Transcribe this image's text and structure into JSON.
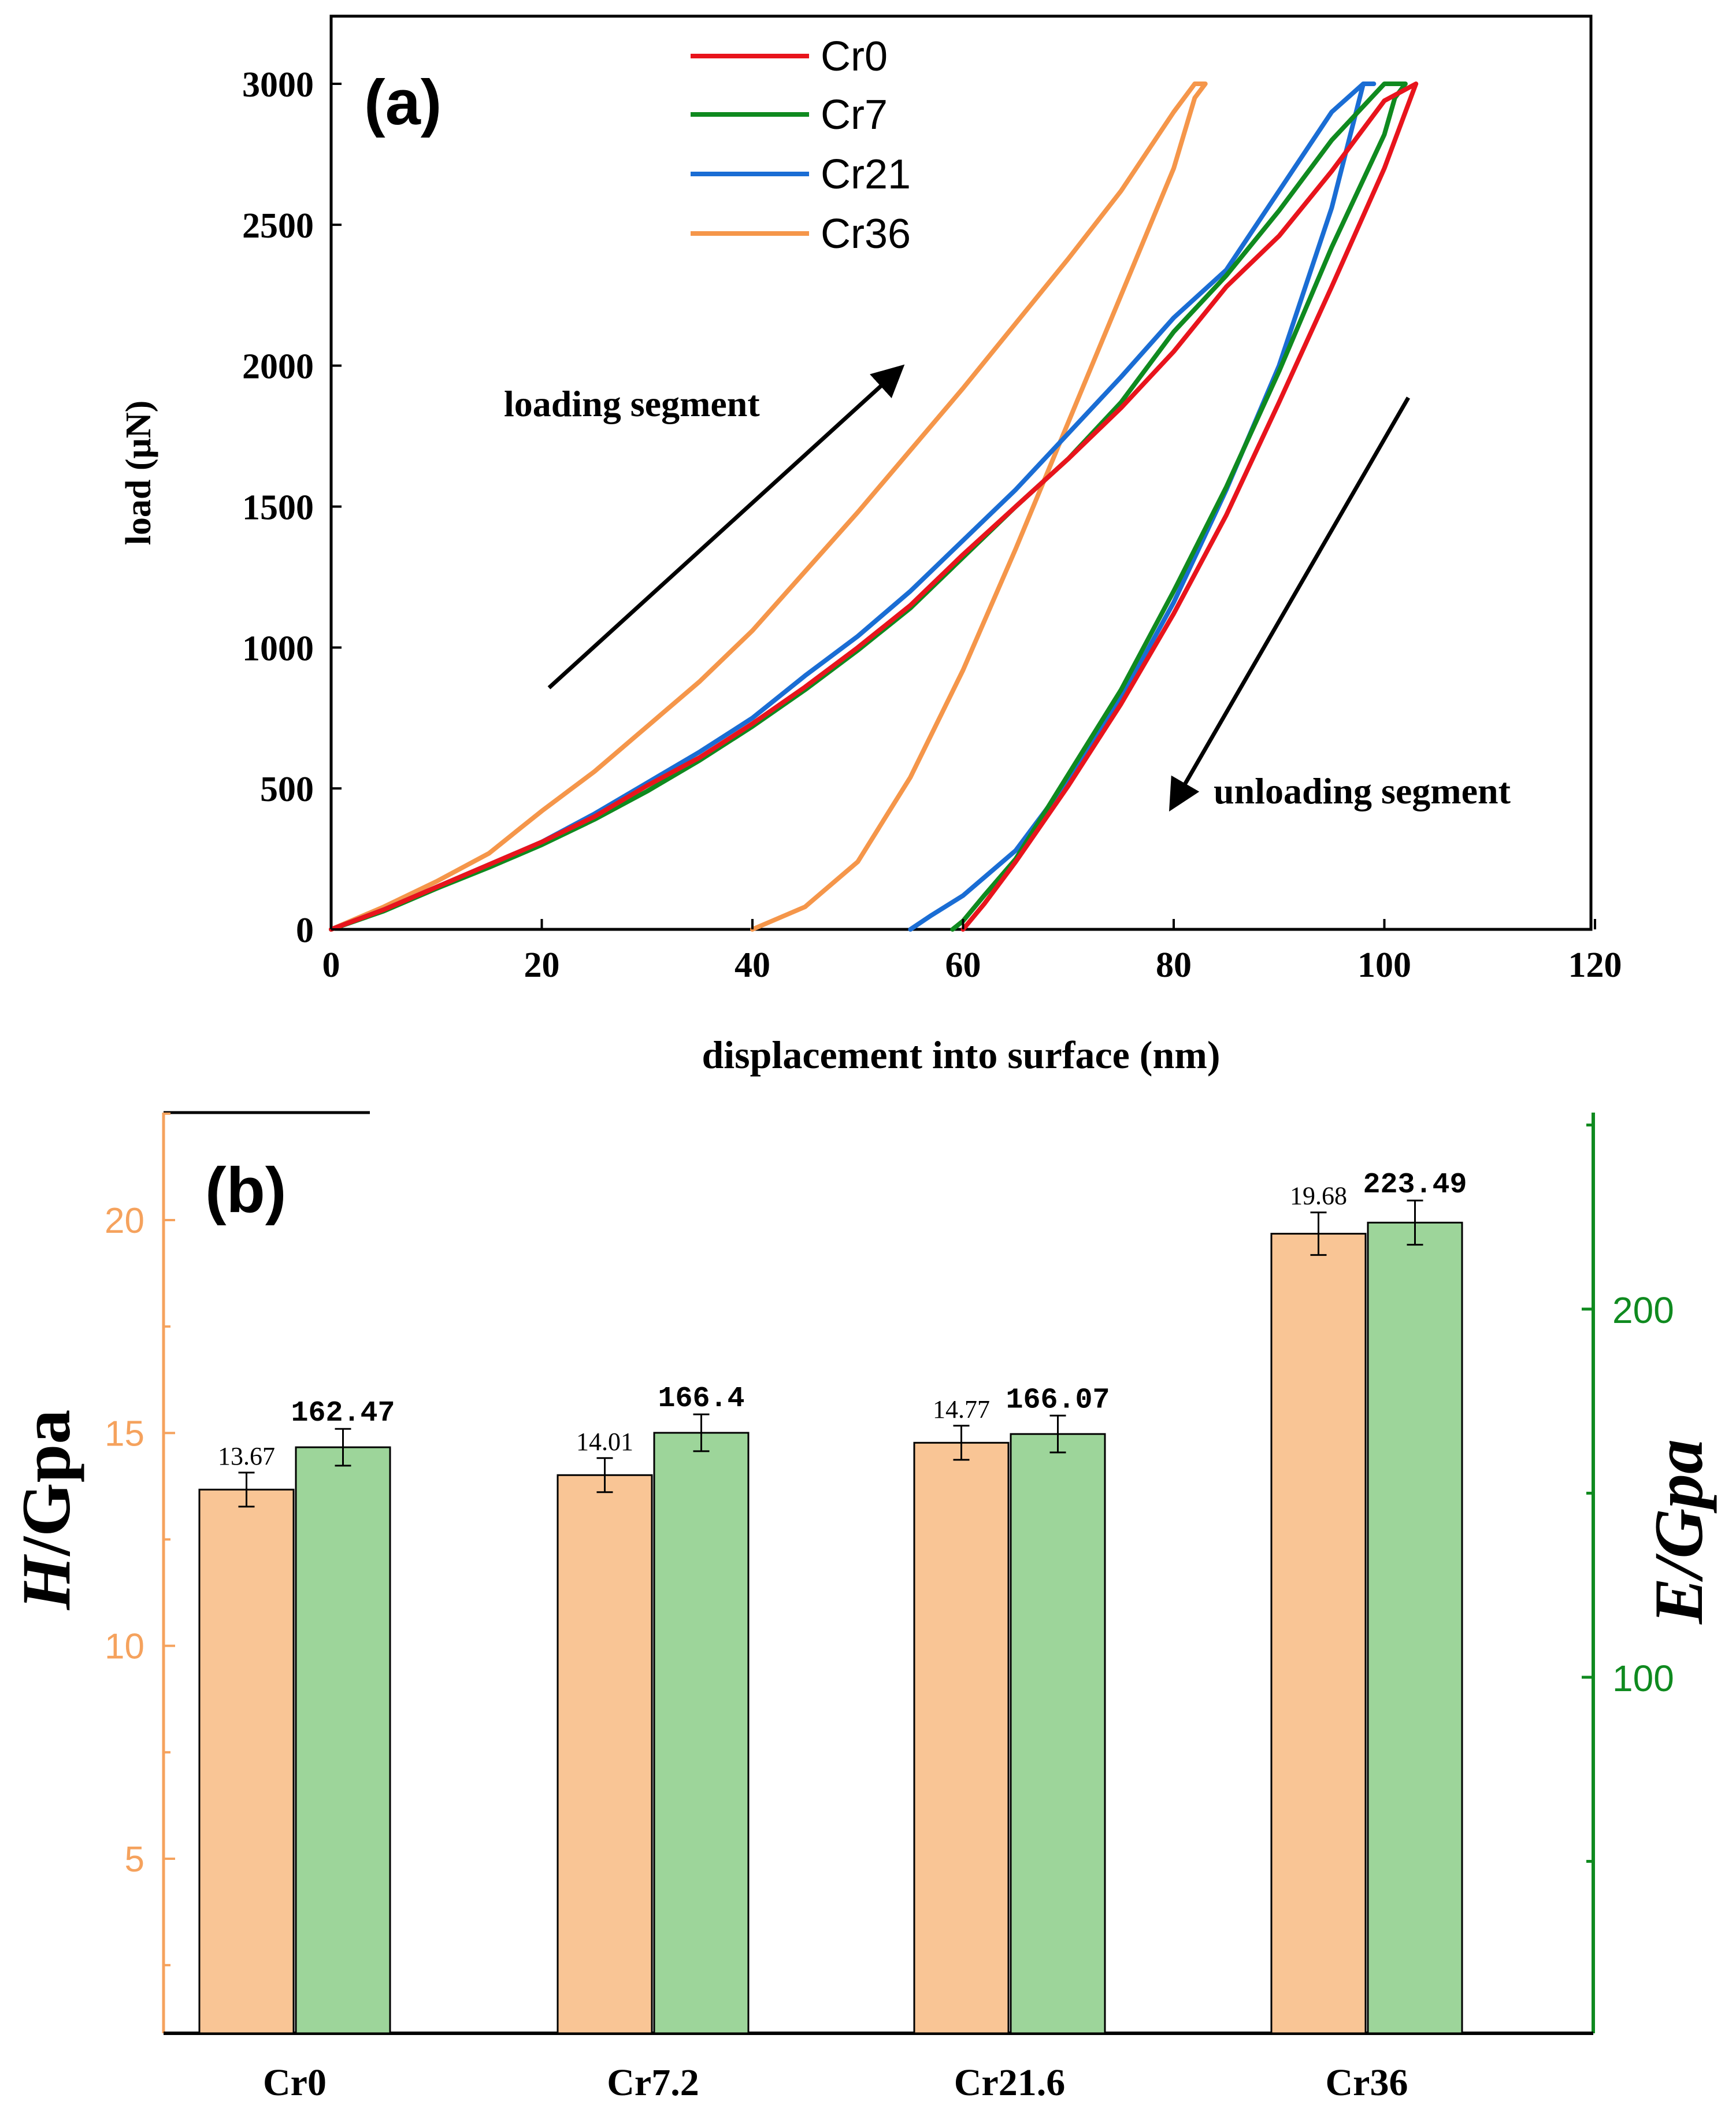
{
  "chart_data": [
    {
      "type": "line",
      "panel_label": "(a)",
      "xlabel": "displacement into surface (nm)",
      "ylabel": "load (μN)",
      "xlim": [
        0,
        120
      ],
      "ylim": [
        0,
        3200
      ],
      "xticks": [
        "0",
        "20",
        "40",
        "60",
        "80",
        "100",
        "120"
      ],
      "yticks": [
        "0",
        "500",
        "1000",
        "1500",
        "2000",
        "2500",
        "3000"
      ],
      "annotations": {
        "loading": "loading segment",
        "unloading": "unloading segment"
      },
      "legend_position": "top-center",
      "series": [
        {
          "name": "Cr0",
          "color": "#e8141c",
          "x": [
            0,
            5,
            10,
            15,
            20,
            25,
            30,
            35,
            40,
            45,
            50,
            55,
            60,
            65,
            70,
            75,
            80,
            85,
            90,
            95,
            100,
            103,
            103,
            102,
            100,
            95,
            90,
            85,
            80,
            75,
            70,
            65,
            62,
            60
          ],
          "y": [
            0,
            70,
            150,
            230,
            310,
            400,
            510,
            610,
            730,
            860,
            1000,
            1150,
            1330,
            1500,
            1670,
            1850,
            2050,
            2280,
            2460,
            2690,
            2940,
            3000,
            3000,
            2900,
            2700,
            2280,
            1870,
            1470,
            1120,
            800,
            510,
            240,
            90,
            0
          ]
        },
        {
          "name": "Cr7",
          "color": "#0f8a1f",
          "x": [
            0,
            5,
            10,
            15,
            20,
            25,
            30,
            35,
            40,
            45,
            50,
            55,
            60,
            65,
            70,
            75,
            80,
            85,
            90,
            95,
            100,
            102,
            102,
            101,
            100,
            95,
            90,
            85,
            80,
            75,
            70,
            65,
            62,
            60,
            59
          ],
          "y": [
            0,
            65,
            145,
            220,
            300,
            390,
            490,
            600,
            720,
            850,
            990,
            1140,
            1320,
            1500,
            1670,
            1870,
            2120,
            2320,
            2550,
            2800,
            3000,
            3000,
            3000,
            2950,
            2820,
            2420,
            1980,
            1570,
            1200,
            850,
            550,
            250,
            120,
            30,
            0
          ]
        },
        {
          "name": "Cr21",
          "color": "#1a6dd4",
          "x": [
            0,
            5,
            10,
            15,
            20,
            25,
            30,
            35,
            40,
            45,
            50,
            55,
            60,
            65,
            70,
            75,
            80,
            85,
            90,
            95,
            98,
            99,
            98,
            95,
            90,
            85,
            80,
            75,
            70,
            65,
            60,
            57,
            55
          ],
          "y": [
            0,
            70,
            150,
            230,
            310,
            410,
            520,
            630,
            750,
            900,
            1040,
            1200,
            1380,
            1560,
            1760,
            1960,
            2170,
            2340,
            2620,
            2900,
            3000,
            3000,
            3000,
            2560,
            2000,
            1560,
            1160,
            820,
            530,
            280,
            120,
            50,
            0
          ]
        },
        {
          "name": "Cr36",
          "color": "#f5964a",
          "x": [
            0,
            5,
            10,
            15,
            18,
            20,
            25,
            30,
            35,
            40,
            45,
            50,
            55,
            60,
            65,
            70,
            75,
            80,
            82,
            83,
            82,
            80,
            75,
            70,
            65,
            60,
            55,
            50,
            45,
            40
          ],
          "y": [
            0,
            80,
            170,
            270,
            360,
            420,
            560,
            720,
            880,
            1060,
            1270,
            1480,
            1700,
            1920,
            2150,
            2380,
            2620,
            2900,
            3000,
            3000,
            2950,
            2700,
            2250,
            1800,
            1350,
            920,
            540,
            240,
            80,
            0
          ]
        }
      ]
    },
    {
      "type": "bar",
      "panel_label": "(b)",
      "categories": [
        "Cr0",
        "Cr7.2",
        "Cr21.6",
        "Cr36"
      ],
      "y_left": {
        "label_italic": "H",
        "label_rest": "/Gpa",
        "lim": [
          0.9,
          22.5
        ],
        "ticks": [
          "5",
          "10",
          "15",
          "20"
        ],
        "color": "#f5a25d"
      },
      "y_right": {
        "label": "E/Gpa",
        "lim": [
          3.3,
          253
        ],
        "ticks": [
          "100",
          "200"
        ],
        "color": "#0f8a1f"
      },
      "series": [
        {
          "name": "H",
          "axis": "left",
          "color": "#f9c595",
          "values": [
            13.67,
            14.01,
            14.77,
            19.68
          ],
          "errors": [
            0.4,
            0.4,
            0.4,
            0.5
          ],
          "labels": [
            "13.67",
            "14.01",
            "14.77",
            "19.68"
          ]
        },
        {
          "name": "E",
          "axis": "right",
          "color": "#9dd59a",
          "values": [
            162.47,
            166.4,
            166.07,
            223.49
          ],
          "errors": [
            5,
            5,
            5,
            6
          ],
          "labels": [
            "162.47",
            "166.4",
            "166.07",
            "223.49"
          ]
        }
      ]
    }
  ]
}
